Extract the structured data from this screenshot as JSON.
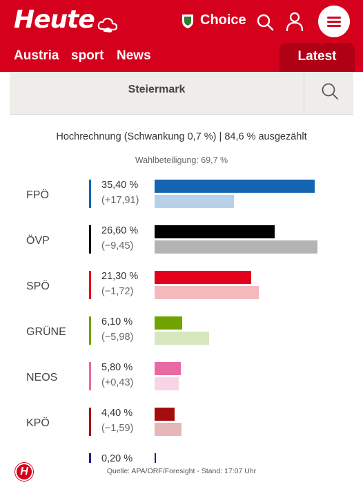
{
  "header": {
    "logo_text": "Heute",
    "choice_label": "Choice",
    "nav": [
      "Austria",
      "sport",
      "News"
    ],
    "latest_label": "Latest",
    "brand_color": "#d5001c",
    "icons": [
      "cloud-icon",
      "shield-icon",
      "search-icon",
      "user-icon",
      "menu-icon"
    ]
  },
  "region": {
    "label": "Steiermark"
  },
  "results": {
    "headline": "Hochrechnung (Schwankung 0,7 %) | 84,6 % ausgezählt",
    "turnout": "Wahlbeteiligung: 69,7 %",
    "parties": [
      {
        "name": "FPÖ",
        "pct": "35,40 %",
        "diff": "(+17,91)",
        "color": "#1565b0",
        "diff_color": "#b7d1ea",
        "pct_val": 35.4,
        "prev_val": 17.49
      },
      {
        "name": "ÖVP",
        "pct": "26,60 %",
        "diff": "(−9,45)",
        "color": "#000000",
        "diff_color": "#b3b3b3",
        "pct_val": 26.6,
        "prev_val": 36.05
      },
      {
        "name": "SPÖ",
        "pct": "21,30 %",
        "diff": "(−1,72)",
        "color": "#e3001b",
        "diff_color": "#f4b9bd",
        "pct_val": 21.3,
        "prev_val": 23.02
      },
      {
        "name": "GRÜNE",
        "pct": "6,10 %",
        "diff": "(−5,98)",
        "color": "#6fa300",
        "diff_color": "#d6e7bd",
        "pct_val": 6.1,
        "prev_val": 12.08
      },
      {
        "name": "NEOS",
        "pct": "5,80 %",
        "diff": "(+0,43)",
        "color": "#e96aa3",
        "diff_color": "#f8d4e4",
        "pct_val": 5.8,
        "prev_val": 5.37
      },
      {
        "name": "KPÖ",
        "pct": "4,40 %",
        "diff": "(−1,59)",
        "color": "#a50d0d",
        "diff_color": "#e6b7b8",
        "pct_val": 4.4,
        "prev_val": 5.99
      },
      {
        "name": "",
        "pct": "0,20 %",
        "diff": "",
        "color": "#1a237e",
        "diff_color": "#c5cae9",
        "pct_val": 0.2,
        "prev_val": 0
      }
    ],
    "source": "Quelle: APA/ORF/Foresight - Stand: 17:07 Uhr"
  }
}
